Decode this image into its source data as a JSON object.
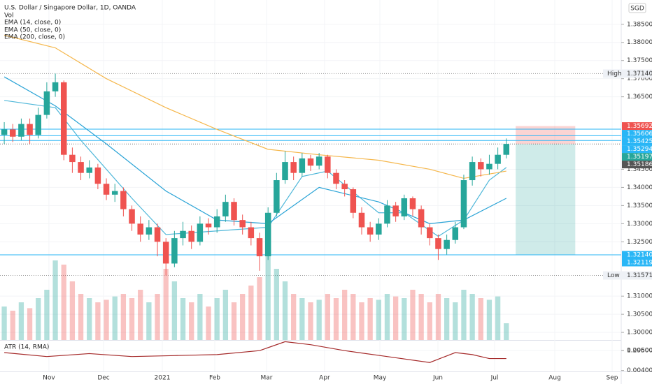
{
  "chart_data": {
    "type": "candlestick",
    "title": "U.S. Dollar / Singapore Dollar, 1D, OANDA",
    "indicator_labels": [
      "Vol",
      "EMA (14, close, 0)",
      "EMA (50, close, 0)",
      "EMA (200, close, 0)"
    ],
    "currency": "SGD",
    "xlim": [
      -0.5,
      72.5
    ],
    "xticks": [
      {
        "value": 5.25,
        "label": "Nov"
      },
      {
        "value": 11.67,
        "label": "Dec"
      },
      {
        "value": 18.57,
        "label": "2021"
      },
      {
        "value": 24.74,
        "label": "Feb"
      },
      {
        "value": 30.82,
        "label": "Mar"
      },
      {
        "value": 37.64,
        "label": "Apr"
      },
      {
        "value": 44.14,
        "label": "May"
      },
      {
        "value": 50.96,
        "label": "Jun"
      },
      {
        "value": 57.62,
        "label": "Jul"
      },
      {
        "value": 64.69,
        "label": "Aug"
      },
      {
        "value": 71.43,
        "label": "Sep"
      }
    ],
    "ylim": [
      1.2979,
      1.3917
    ],
    "yticks": [
      {
        "value": 1.385,
        "label": "1.38500"
      },
      {
        "value": 1.38,
        "label": "1.38000"
      },
      {
        "value": 1.375,
        "label": "1.37500"
      },
      {
        "value": 1.37,
        "label": "1.37000"
      },
      {
        "value": 1.365,
        "label": "1.36500"
      },
      {
        "value": 1.345,
        "label": "1.34500"
      },
      {
        "value": 1.34,
        "label": "1.34000"
      },
      {
        "value": 1.335,
        "label": "1.33500"
      },
      {
        "value": 1.33,
        "label": "1.33000"
      },
      {
        "value": 1.325,
        "label": "1.32500"
      },
      {
        "value": 1.31,
        "label": "1.31000"
      },
      {
        "value": 1.305,
        "label": "1.30500"
      },
      {
        "value": 1.3,
        "label": "1.30000"
      },
      {
        "value": 1.295,
        "label": "1.29500"
      }
    ],
    "up_color": "#26a69a",
    "down_color": "#ef5350",
    "candles": {
      "open": [
        1.3545,
        1.356,
        1.354,
        1.3575,
        1.3545,
        1.36,
        1.3665,
        1.369,
        1.349,
        1.347,
        1.344,
        1.3455,
        1.341,
        1.338,
        1.339,
        1.334,
        1.33,
        1.327,
        1.329,
        1.325,
        1.319,
        1.326,
        1.328,
        1.325,
        1.33,
        1.329,
        1.332,
        1.336,
        1.331,
        1.329,
        1.326,
        1.321,
        1.333,
        1.342,
        1.347,
        1.344,
        1.348,
        1.346,
        1.3485,
        1.344,
        1.341,
        1.3395,
        1.333,
        1.329,
        1.327,
        1.33,
        1.335,
        1.332,
        1.337,
        1.334,
        1.329,
        1.326,
        1.323,
        1.3255,
        1.329,
        1.342,
        1.347,
        1.345,
        1.3465,
        1.349
      ],
      "high": [
        1.358,
        1.3575,
        1.359,
        1.359,
        1.362,
        1.369,
        1.3714,
        1.3695,
        1.351,
        1.3485,
        1.3475,
        1.3465,
        1.3425,
        1.341,
        1.34,
        1.335,
        1.332,
        1.331,
        1.33,
        1.326,
        1.328,
        1.3305,
        1.3295,
        1.332,
        1.3315,
        1.334,
        1.338,
        1.337,
        1.3325,
        1.3305,
        1.3275,
        1.3345,
        1.344,
        1.35,
        1.3485,
        1.3495,
        1.349,
        1.3495,
        1.349,
        1.345,
        1.342,
        1.34,
        1.3345,
        1.3305,
        1.3315,
        1.3365,
        1.336,
        1.338,
        1.3375,
        1.335,
        1.33,
        1.327,
        1.327,
        1.3305,
        1.3435,
        1.3485,
        1.348,
        1.349,
        1.351,
        1.3535
      ],
      "low": [
        1.352,
        1.3525,
        1.353,
        1.352,
        1.3535,
        1.359,
        1.365,
        1.3475,
        1.344,
        1.342,
        1.3425,
        1.3395,
        1.3365,
        1.336,
        1.332,
        1.328,
        1.325,
        1.3255,
        1.321,
        1.3157,
        1.318,
        1.324,
        1.323,
        1.324,
        1.327,
        1.3275,
        1.3305,
        1.3295,
        1.327,
        1.324,
        1.317,
        1.32,
        1.332,
        1.341,
        1.342,
        1.343,
        1.3445,
        1.345,
        1.3425,
        1.3395,
        1.3375,
        1.3315,
        1.327,
        1.325,
        1.3255,
        1.329,
        1.3305,
        1.331,
        1.332,
        1.327,
        1.324,
        1.32,
        1.3215,
        1.3245,
        1.3285,
        1.3405,
        1.343,
        1.3435,
        1.345,
        1.348
      ],
      "close": [
        1.356,
        1.354,
        1.3575,
        1.3545,
        1.36,
        1.3665,
        1.369,
        1.349,
        1.347,
        1.344,
        1.3455,
        1.341,
        1.338,
        1.339,
        1.334,
        1.33,
        1.327,
        1.329,
        1.325,
        1.319,
        1.326,
        1.328,
        1.325,
        1.33,
        1.329,
        1.332,
        1.336,
        1.331,
        1.329,
        1.326,
        1.321,
        1.333,
        1.342,
        1.347,
        1.344,
        1.348,
        1.346,
        1.3485,
        1.344,
        1.341,
        1.3395,
        1.333,
        1.329,
        1.327,
        1.33,
        1.335,
        1.332,
        1.337,
        1.334,
        1.329,
        1.326,
        1.323,
        1.3255,
        1.329,
        1.342,
        1.347,
        1.345,
        1.3465,
        1.349,
        1.352
      ]
    },
    "volume": [
      40,
      35,
      45,
      38,
      50,
      60,
      95,
      90,
      70,
      55,
      50,
      45,
      48,
      52,
      55,
      50,
      60,
      45,
      55,
      85,
      70,
      50,
      45,
      55,
      40,
      50,
      60,
      45,
      55,
      65,
      75,
      100,
      85,
      70,
      55,
      50,
      45,
      48,
      55,
      50,
      60,
      55,
      45,
      50,
      48,
      55,
      52,
      50,
      60,
      55,
      45,
      55,
      50,
      45,
      60,
      55,
      50,
      48,
      52,
      20
    ],
    "volume_lim": [
      0,
      100
    ],
    "series": [
      {
        "name": "EMA (14, close, 0)",
        "color": "#4fb7d9",
        "x": [
          0,
          6,
          9,
          15,
          19,
          25,
          31,
          35,
          38,
          44,
          47,
          51,
          54,
          57,
          59
        ],
        "values": [
          1.364,
          1.362,
          1.353,
          1.337,
          1.327,
          1.328,
          1.329,
          1.343,
          1.3445,
          1.333,
          1.333,
          1.3265,
          1.331,
          1.342,
          1.3455
        ]
      },
      {
        "name": "EMA (50, close, 0)",
        "color": "#29a3d6",
        "x": [
          0,
          6,
          12,
          19,
          25,
          31,
          37,
          44,
          50,
          54,
          59
        ],
        "values": [
          1.3705,
          1.3625,
          1.352,
          1.339,
          1.331,
          1.33,
          1.34,
          1.336,
          1.33,
          1.331,
          1.337
        ]
      },
      {
        "name": "EMA (200, close, 0)",
        "color": "#f5b74c",
        "x": [
          0,
          6,
          12,
          19,
          25,
          31,
          37,
          44,
          50,
          54,
          59
        ],
        "values": [
          1.382,
          1.3785,
          1.37,
          1.362,
          1.356,
          1.3505,
          1.349,
          1.3475,
          1.345,
          1.3425,
          1.3445
        ]
      }
    ],
    "levels": [
      1.35606,
      1.35425,
      1.35294,
      1.3214
    ],
    "position": {
      "start_x": 60.1,
      "end_x": 67.1,
      "stop": 1.35692,
      "entry": 1.35197,
      "target": 1.3214
    },
    "high_low": [
      {
        "name": "High",
        "value": 1.3714,
        "label": "1.37140"
      },
      {
        "name": "Low",
        "value": 1.31571,
        "label": "1.31571"
      }
    ],
    "price_labels": [
      {
        "value": 1.35692,
        "color": "#ef5350"
      },
      {
        "value": 1.35606,
        "color": "#29b6f6"
      },
      {
        "value": 1.35425,
        "color": "#29b6f6"
      },
      {
        "value": 1.35294,
        "color": "#29b6f6"
      },
      {
        "value": 1.35197,
        "color": "#26a69a"
      },
      {
        "value": 1.35186,
        "color": "#555555"
      },
      {
        "value": 1.3214,
        "label": "1.32140",
        "color": "#29b6f6"
      },
      {
        "value": 1.32119,
        "color": "#29b6f6"
      }
    ],
    "atr": {
      "name": "ATR (14, RMA)",
      "color": "#a52a2a",
      "x": [
        0,
        5,
        10,
        15,
        20,
        25,
        30,
        33,
        36,
        40,
        45,
        50,
        53,
        55,
        57,
        59
      ],
      "values": [
        0.0058,
        0.0054,
        0.0057,
        0.0054,
        0.0055,
        0.0056,
        0.006,
        0.0069,
        0.0066,
        0.006,
        0.0054,
        0.0048,
        0.0058,
        0.0056,
        0.0052,
        0.0052
      ],
      "ylim": [
        0.0039,
        0.007
      ],
      "yticks": [
        {
          "value": 0.006,
          "label": "0.00600"
        },
        {
          "value": 0.004,
          "label": "0.00400"
        }
      ]
    }
  }
}
